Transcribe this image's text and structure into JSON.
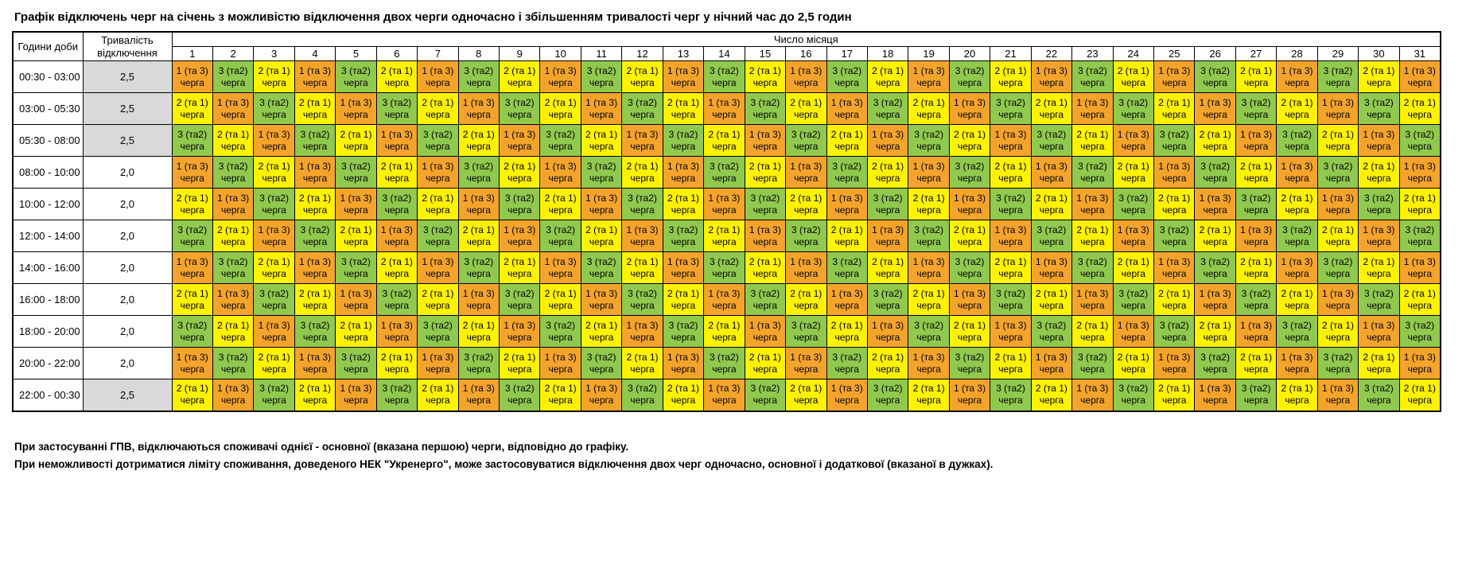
{
  "title": "Графік відключень черг на січень з можливістю відключення двох черги одночасно і збільшенням тривалості черг у нічний час до 2,5 годин",
  "colors": {
    "queue1_orange": "#F5A42B",
    "queue2_yellow": "#FFF200",
    "queue3_green": "#90C94E",
    "duration_shade": "#D9D9D9",
    "border": "#000000",
    "background": "#FFFFFF"
  },
  "queues": {
    "1": {
      "label": "1 (та 3)",
      "word": "черга",
      "color": "#F5A42B"
    },
    "2": {
      "label": "2 (та 1)",
      "word": "черга",
      "color": "#FFF200"
    },
    "3": {
      "label": "3 (та2)",
      "word": "черга",
      "color": "#90C94E"
    }
  },
  "table": {
    "hours_header": "Години доби",
    "duration_header_line1": "Тривалість",
    "duration_header_line2": "відключення",
    "day_group_header": "Число місяця",
    "days": [
      1,
      2,
      3,
      4,
      5,
      6,
      7,
      8,
      9,
      10,
      11,
      12,
      13,
      14,
      15,
      16,
      17,
      18,
      19,
      20,
      21,
      22,
      23,
      24,
      25,
      26,
      27,
      28,
      29,
      30,
      31
    ],
    "rows": [
      {
        "time": "00:30 - 03:00",
        "duration": "2,5",
        "shaded": true,
        "queues": [
          1,
          3,
          2,
          1,
          3,
          2,
          1,
          3,
          2,
          1,
          3,
          2,
          1,
          3,
          2,
          1,
          3,
          2,
          1,
          3,
          2,
          1,
          3,
          2,
          1,
          3,
          2,
          1,
          3,
          2,
          1
        ]
      },
      {
        "time": "03:00 - 05:30",
        "duration": "2,5",
        "shaded": true,
        "queues": [
          2,
          1,
          3,
          2,
          1,
          3,
          2,
          1,
          3,
          2,
          1,
          3,
          2,
          1,
          3,
          2,
          1,
          3,
          2,
          1,
          3,
          2,
          1,
          3,
          2,
          1,
          3,
          2,
          1,
          3,
          2
        ]
      },
      {
        "time": "05:30 - 08:00",
        "duration": "2,5",
        "shaded": true,
        "queues": [
          3,
          2,
          1,
          3,
          2,
          1,
          3,
          2,
          1,
          3,
          2,
          1,
          3,
          2,
          1,
          3,
          2,
          1,
          3,
          2,
          1,
          3,
          2,
          1,
          3,
          2,
          1,
          3,
          2,
          1,
          3
        ]
      },
      {
        "time": "08:00 - 10:00",
        "duration": "2,0",
        "shaded": false,
        "queues": [
          1,
          3,
          2,
          1,
          3,
          2,
          1,
          3,
          2,
          1,
          3,
          2,
          1,
          3,
          2,
          1,
          3,
          2,
          1,
          3,
          2,
          1,
          3,
          2,
          1,
          3,
          2,
          1,
          3,
          2,
          1
        ]
      },
      {
        "time": "10:00 - 12:00",
        "duration": "2,0",
        "shaded": false,
        "queues": [
          2,
          1,
          3,
          2,
          1,
          3,
          2,
          1,
          3,
          2,
          1,
          3,
          2,
          1,
          3,
          2,
          1,
          3,
          2,
          1,
          3,
          2,
          1,
          3,
          2,
          1,
          3,
          2,
          1,
          3,
          2
        ]
      },
      {
        "time": "12:00 - 14:00",
        "duration": "2,0",
        "shaded": false,
        "queues": [
          3,
          2,
          1,
          3,
          2,
          1,
          3,
          2,
          1,
          3,
          2,
          1,
          3,
          2,
          1,
          3,
          2,
          1,
          3,
          2,
          1,
          3,
          2,
          1,
          3,
          2,
          1,
          3,
          2,
          1,
          3
        ]
      },
      {
        "time": "14:00 - 16:00",
        "duration": "2,0",
        "shaded": false,
        "queues": [
          1,
          3,
          2,
          1,
          3,
          2,
          1,
          3,
          2,
          1,
          3,
          2,
          1,
          3,
          2,
          1,
          3,
          2,
          1,
          3,
          2,
          1,
          3,
          2,
          1,
          3,
          2,
          1,
          3,
          2,
          1
        ]
      },
      {
        "time": "16:00 - 18:00",
        "duration": "2,0",
        "shaded": false,
        "queues": [
          2,
          1,
          3,
          2,
          1,
          3,
          2,
          1,
          3,
          2,
          1,
          3,
          2,
          1,
          3,
          2,
          1,
          3,
          2,
          1,
          3,
          2,
          1,
          3,
          2,
          1,
          3,
          2,
          1,
          3,
          2
        ]
      },
      {
        "time": "18:00 - 20:00",
        "duration": "2,0",
        "shaded": false,
        "queues": [
          3,
          2,
          1,
          3,
          2,
          1,
          3,
          2,
          1,
          3,
          2,
          1,
          3,
          2,
          1,
          3,
          2,
          1,
          3,
          2,
          1,
          3,
          2,
          1,
          3,
          2,
          1,
          3,
          2,
          1,
          3
        ]
      },
      {
        "time": "20:00 - 22:00",
        "duration": "2,0",
        "shaded": false,
        "queues": [
          1,
          3,
          2,
          1,
          3,
          2,
          1,
          3,
          2,
          1,
          3,
          2,
          1,
          3,
          2,
          1,
          3,
          2,
          1,
          3,
          2,
          1,
          3,
          2,
          1,
          3,
          2,
          1,
          3,
          2,
          1
        ]
      },
      {
        "time": "22:00 - 00:30",
        "duration": "2,5",
        "shaded": true,
        "queues": [
          2,
          1,
          3,
          2,
          1,
          3,
          2,
          1,
          3,
          2,
          1,
          3,
          2,
          1,
          3,
          2,
          1,
          3,
          2,
          1,
          3,
          2,
          1,
          3,
          2,
          1,
          3,
          2,
          1,
          3,
          2
        ]
      }
    ]
  },
  "notes": [
    "При застосуванні ГПВ, відключаються споживачі однієї - основної (вказана першою) черги, відповідно до графіку.",
    "При неможливості дотриматися ліміту споживання, доведеного НЕК \"Укренерго\", може застосовуватися відключення двох черг одночасно, основної і додаткової (вказаної в дужках)."
  ]
}
